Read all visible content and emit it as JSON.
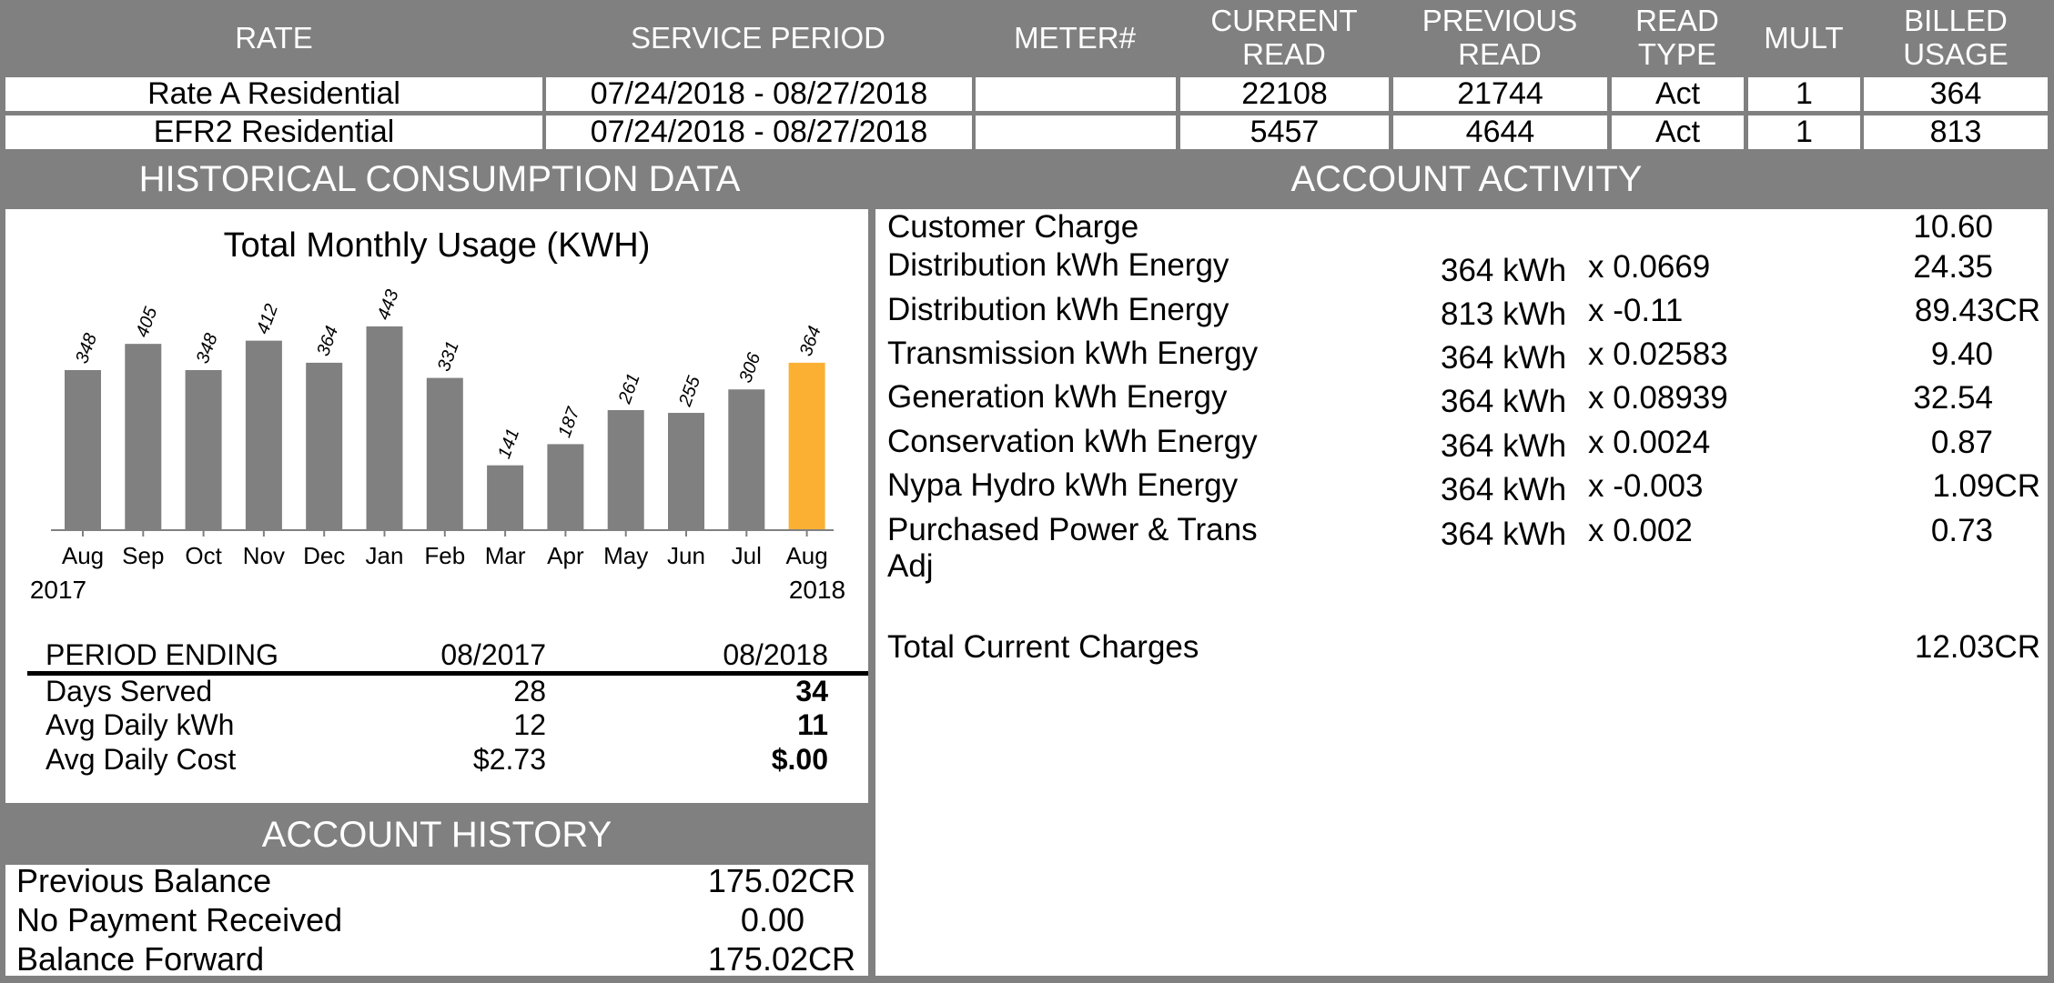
{
  "meter_table": {
    "headers": {
      "rate": "RATE",
      "service_period": "SERVICE PERIOD",
      "meter": "METER#",
      "current_read_1": "CURRENT",
      "current_read_2": "READ",
      "previous_read_1": "PREVIOUS",
      "previous_read_2": "READ",
      "read_type_1": "READ",
      "read_type_2": "TYPE",
      "mult": "MULT",
      "billed_usage_1": "BILLED",
      "billed_usage_2": "USAGE"
    },
    "rows": [
      {
        "rate": "Rate A Residential",
        "service_period": "07/24/2018 - 08/27/2018",
        "meter": "",
        "current_read": "22108",
        "previous_read": "21744",
        "read_type": "Act",
        "mult": "1",
        "billed_usage": "364"
      },
      {
        "rate": "EFR2 Residential",
        "service_period": "07/24/2018 - 08/27/2018",
        "meter": "",
        "current_read": "5457",
        "previous_read": "4644",
        "read_type": "Act",
        "mult": "1",
        "billed_usage": "813"
      }
    ]
  },
  "historical": {
    "banner": "HISTORICAL CONSUMPTION DATA",
    "start_year": "2017",
    "end_year": "2018",
    "period_table": {
      "header": [
        "PERIOD ENDING",
        "08/2017",
        "08/2018"
      ],
      "rows": [
        [
          "Days Served",
          "28",
          "34"
        ],
        [
          "Avg Daily kWh",
          "12",
          "11"
        ],
        [
          "Avg Daily Cost",
          "$2.73",
          "$.00"
        ]
      ]
    }
  },
  "chart_data": {
    "type": "bar",
    "title": "Total Monthly Usage (KWH)",
    "categories": [
      "Aug",
      "Sep",
      "Oct",
      "Nov",
      "Dec",
      "Jan",
      "Feb",
      "Mar",
      "Apr",
      "May",
      "Jun",
      "Jul",
      "Aug"
    ],
    "values": [
      348,
      405,
      348,
      412,
      364,
      443,
      331,
      141,
      187,
      261,
      255,
      306,
      364
    ],
    "data_labels": [
      "348",
      "405",
      "348",
      "412",
      "364",
      "443",
      "331",
      "141",
      "187",
      "261",
      "255",
      "306",
      "364"
    ],
    "highlight_index": 12,
    "bar_color": "#808080",
    "highlight_color": "#FBB033",
    "ylim": [
      0,
      520
    ],
    "grid": false,
    "xlabel": "",
    "ylabel": ""
  },
  "account_activity": {
    "banner": "ACCOUNT ACTIVITY",
    "items": [
      {
        "desc": "Customer Charge",
        "qty": "",
        "rate": "",
        "amount": "10.60"
      },
      {
        "desc": "Distribution kWh Energy",
        "qty": "364 kWh",
        "rate": "x 0.0669",
        "amount": "24.35"
      },
      {
        "desc": "Distribution kWh Energy",
        "qty": "813 kWh",
        "rate": "x -0.11",
        "amount": "89.43CR"
      },
      {
        "desc": "Transmission kWh Energy",
        "qty": "364 kWh",
        "rate": "x 0.02583",
        "amount": "9.40"
      },
      {
        "desc": "Generation kWh Energy",
        "qty": "364 kWh",
        "rate": "x 0.08939",
        "amount": "32.54"
      },
      {
        "desc": "Conservation kWh Energy",
        "qty": "364 kWh",
        "rate": "x 0.0024",
        "amount": "0.87"
      },
      {
        "desc": "Nypa Hydro kWh Energy",
        "qty": "364 kWh",
        "rate": "x -0.003",
        "amount": "1.09CR"
      },
      {
        "desc": "Purchased Power & Trans Adj",
        "qty": "364 kWh",
        "rate": "x 0.002",
        "amount": "0.73"
      }
    ],
    "total_label": "Total Current Charges",
    "total_amount": "12.03CR"
  },
  "account_history": {
    "banner": "ACCOUNT HISTORY",
    "rows": [
      {
        "label": "Previous Balance",
        "amount": "175.02CR"
      },
      {
        "label": "No Payment Received",
        "amount": "0.00"
      },
      {
        "label": "Balance Forward",
        "amount": "175.02CR"
      }
    ]
  },
  "colors": {
    "header_gray": "#808080",
    "highlight": "#FBB033"
  }
}
